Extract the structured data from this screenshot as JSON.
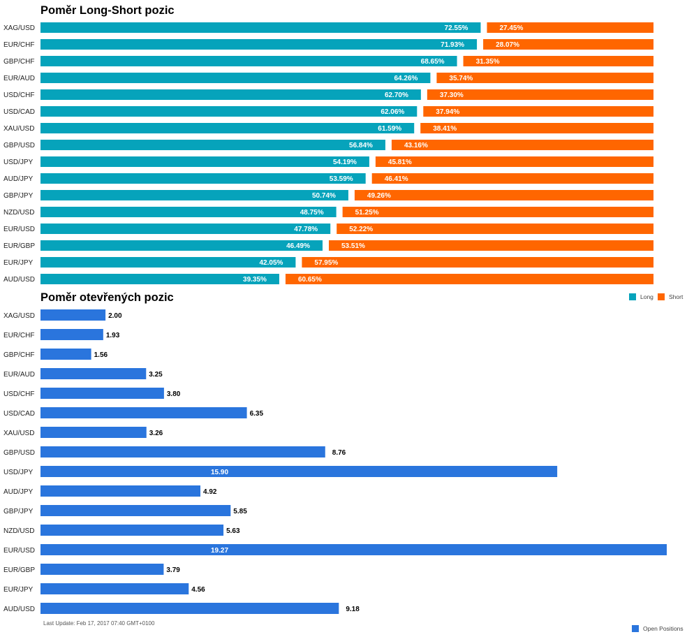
{
  "colors": {
    "long": "#06a3bb",
    "short": "#ff6600",
    "open": "#2a75dd"
  },
  "chart_data": [
    {
      "type": "bar",
      "title": "Poměr Long-Short pozic",
      "orientation": "horizontal",
      "stacked": true,
      "categories": [
        "XAG/USD",
        "EUR/CHF",
        "GBP/CHF",
        "EUR/AUD",
        "USD/CHF",
        "USD/CAD",
        "XAU/USD",
        "GBP/USD",
        "USD/JPY",
        "AUD/JPY",
        "GBP/JPY",
        "NZD/USD",
        "EUR/USD",
        "EUR/GBP",
        "EUR/JPY",
        "AUD/USD"
      ],
      "series": [
        {
          "name": "Long",
          "values": [
            72.55,
            71.93,
            68.65,
            64.26,
            62.7,
            62.06,
            61.59,
            56.84,
            54.19,
            53.59,
            50.74,
            48.75,
            47.78,
            46.49,
            42.05,
            39.35
          ],
          "labels": [
            "72.55%",
            "71.93%",
            "68.65%",
            "64.26%",
            "62.70%",
            "62.06%",
            "61.59%",
            "56.84%",
            "54.19%",
            "53.59%",
            "50.74%",
            "48.75%",
            "47.78%",
            "46.49%",
            "42.05%",
            "39.35%"
          ]
        },
        {
          "name": "Short",
          "values": [
            27.45,
            28.07,
            31.35,
            35.74,
            37.3,
            37.94,
            38.41,
            43.16,
            45.81,
            46.41,
            49.26,
            51.25,
            52.22,
            53.51,
            57.95,
            60.65
          ],
          "labels": [
            "27.45%",
            "28.07%",
            "31.35%",
            "35.74%",
            "37.30%",
            "37.94%",
            "38.41%",
            "43.16%",
            "45.81%",
            "46.41%",
            "49.26%",
            "51.25%",
            "52.22%",
            "53.51%",
            "57.95%",
            "60.65%"
          ]
        }
      ],
      "xlim": [
        0,
        100
      ],
      "legend": "bottom-right"
    },
    {
      "type": "bar",
      "title": "Poměr otevřených pozic",
      "orientation": "horizontal",
      "categories": [
        "XAG/USD",
        "EUR/CHF",
        "GBP/CHF",
        "EUR/AUD",
        "USD/CHF",
        "USD/CAD",
        "XAU/USD",
        "GBP/USD",
        "USD/JPY",
        "AUD/JPY",
        "GBP/JPY",
        "NZD/USD",
        "EUR/USD",
        "EUR/GBP",
        "EUR/JPY",
        "AUD/USD"
      ],
      "series": [
        {
          "name": "Open Positions",
          "values": [
            2.0,
            1.93,
            1.56,
            3.25,
            3.8,
            6.35,
            3.26,
            8.76,
            15.9,
            4.92,
            5.85,
            5.63,
            19.27,
            3.79,
            4.56,
            9.18
          ],
          "labels": [
            "2.00",
            "1.93",
            "1.56",
            "3.25",
            "3.80",
            "6.35",
            "3.26",
            "8.76",
            "15.90",
            "4.92",
            "5.85",
            "5.63",
            "19.27",
            "3.79",
            "4.56",
            "9.18"
          ]
        }
      ],
      "xlim": [
        0,
        19.27
      ],
      "legend": "bottom-right"
    }
  ],
  "legend": {
    "long": "Long",
    "short": "Short",
    "open": "Open Positions"
  },
  "footer": "Last Update: Feb 17, 2017 07:40 GMT+0100"
}
